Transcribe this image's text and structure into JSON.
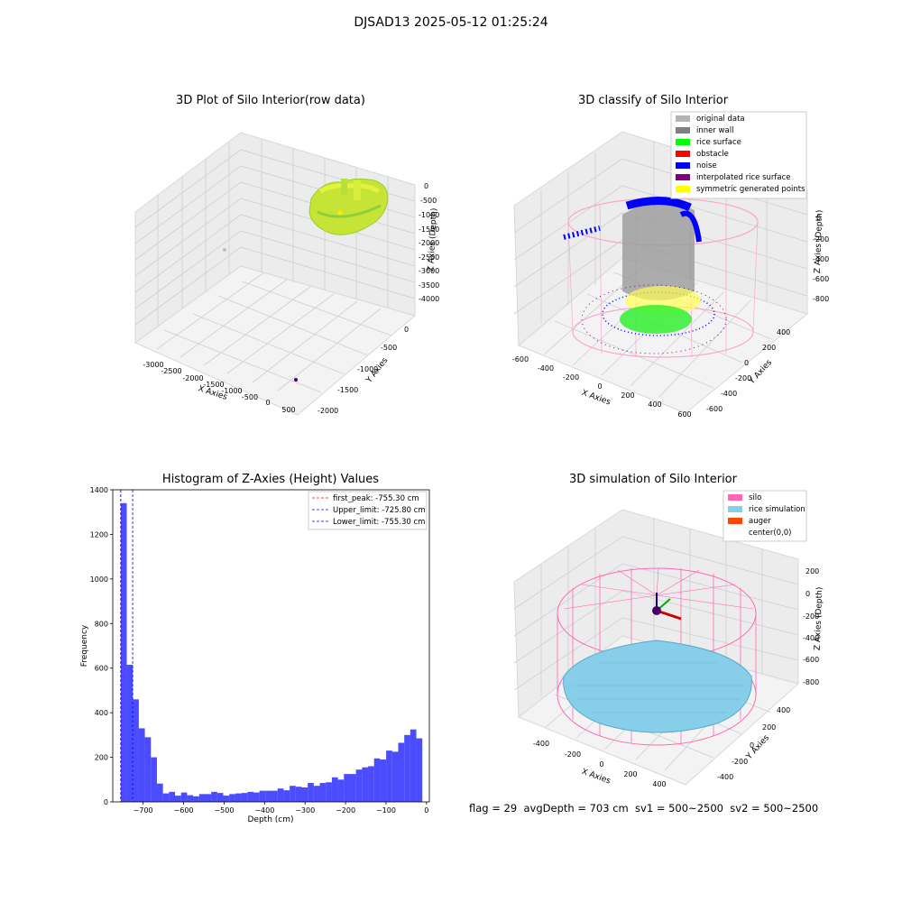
{
  "figure": {
    "suptitle": "DJSAD13 2025-05-12 01:25:24",
    "status_line": "flag = 29  avgDepth = 703 cm  sv1 = 500~2500  sv2 = 500~2500"
  },
  "panels": {
    "raw": {
      "title": "3D Plot of Silo Interior(row data)",
      "xlabel": "X Axies",
      "ylabel": "Y Axies",
      "zlabel": "Z Axies (Depth)",
      "xticks": [
        "-3000",
        "-2500",
        "-2000",
        "-1500",
        "-1000",
        "-500",
        "0",
        "500"
      ],
      "yticks": [
        "0",
        "-500",
        "-1000",
        "-1500",
        "-2000"
      ],
      "zticks": [
        "0",
        "-500",
        "-1000",
        "-1500",
        "-2000",
        "-2500",
        "-3000",
        "-3500",
        "-4000"
      ]
    },
    "classify": {
      "title": "3D classify of Silo Interior",
      "xlabel": "X Axies",
      "ylabel": "Y Axies",
      "zlabel": "Z Axies (Depth)",
      "xticks": [
        "-600",
        "-400",
        "-200",
        "0",
        "200",
        "400",
        "600"
      ],
      "yticks": [
        "400",
        "200",
        "0",
        "-200",
        "-400",
        "-600"
      ],
      "zticks": [
        "0",
        "-200",
        "-400",
        "-600",
        "-800"
      ],
      "legend": [
        {
          "label": "original data",
          "color": "#b4b4b4"
        },
        {
          "label": "inner wall",
          "color": "#808080"
        },
        {
          "label": "rice surface",
          "color": "#00ff00"
        },
        {
          "label": "obstacle",
          "color": "#ff0000"
        },
        {
          "label": "noise",
          "color": "#0000ff"
        },
        {
          "label": "interpolated rice surface",
          "color": "#800080"
        },
        {
          "label": "symmetric generated points",
          "color": "#ffff00"
        }
      ]
    },
    "simulation": {
      "title": "3D simulation of Silo Interior",
      "xlabel": "X Axies",
      "ylabel": "Y Axies",
      "zlabel": "Z Axies (Depth)",
      "xticks": [
        "-400",
        "-200",
        "0",
        "200",
        "400"
      ],
      "yticks": [
        "400",
        "200",
        "0",
        "-200",
        "-400"
      ],
      "zticks": [
        "200",
        "0",
        "-200",
        "-400",
        "-600",
        "-800"
      ],
      "legend": [
        {
          "label": "silo",
          "color": "#ff69b4"
        },
        {
          "label": "rice simulation",
          "color": "#87ceeb"
        },
        {
          "label": "auger",
          "color": "#ff4500"
        },
        {
          "label": "center(0,0)",
          "color": ""
        }
      ]
    }
  },
  "chart_data": {
    "type": "bar",
    "title": "Histogram of Z-Axies (Height) Values",
    "xlabel": "Depth (cm)",
    "ylabel": "Frequency",
    "xlim": [
      -775,
      7
    ],
    "ylim": [
      0,
      1400
    ],
    "xticks": [
      -700,
      -600,
      -500,
      -400,
      -300,
      -200,
      -100,
      0
    ],
    "yticks": [
      0,
      200,
      400,
      600,
      800,
      1000,
      1200,
      1400
    ],
    "bin_start": -755.3,
    "bin_width": 14.9,
    "values": [
      1340,
      615,
      460,
      330,
      290,
      200,
      82,
      38,
      45,
      28,
      42,
      30,
      25,
      35,
      35,
      45,
      40,
      28,
      35,
      38,
      40,
      45,
      42,
      50,
      50,
      50,
      60,
      52,
      72,
      68,
      65,
      85,
      72,
      85,
      88,
      110,
      100,
      125,
      125,
      145,
      155,
      160,
      195,
      190,
      230,
      225,
      265,
      300,
      325,
      285
    ],
    "bar_color": "#0000ff",
    "bar_alpha": 0.7,
    "lines": [
      {
        "label": "first_peak: -755.30 cm",
        "x": -755.3,
        "color": "#ff0000"
      },
      {
        "label": "Upper_limit: -725.80 cm",
        "x": -725.8,
        "color": "#0000ff"
      },
      {
        "label": "Lower_limit: -755.30 cm",
        "x": -755.3,
        "color": "#0000ff"
      }
    ],
    "legend_position": "top-right"
  }
}
